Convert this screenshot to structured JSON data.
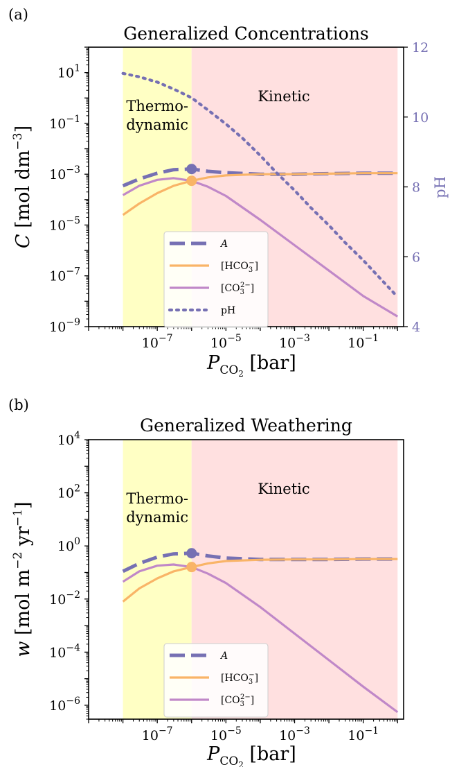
{
  "chart_data": [
    {
      "panel_label": "(a)",
      "type": "line",
      "title": "Generalized Concentrations",
      "xlabel": "P_CO2 [bar]",
      "ylabel": "C [mol dm^-3]",
      "ylabel_right": "pH",
      "x_scale": "log",
      "y_scale": "log",
      "xlim": [
        1e-09,
        1.5
      ],
      "ylim": [
        1e-09,
        100
      ],
      "ylim_right": [
        4,
        12
      ],
      "x_ticks": [
        {
          "value": 1e-07,
          "base": "10",
          "exp": "−7"
        },
        {
          "value": 1e-05,
          "base": "10",
          "exp": "−5"
        },
        {
          "value": 0.001,
          "base": "10",
          "exp": "−3"
        },
        {
          "value": 0.1,
          "base": "10",
          "exp": "−1"
        }
      ],
      "y_ticks": [
        {
          "value": 10,
          "base": "10",
          "exp": "1"
        },
        {
          "value": 0.1,
          "base": "10",
          "exp": "−1"
        },
        {
          "value": 0.001,
          "base": "10",
          "exp": "−3"
        },
        {
          "value": 1e-05,
          "base": "10",
          "exp": "−5"
        },
        {
          "value": 1e-07,
          "base": "10",
          "exp": "−7"
        },
        {
          "value": 1e-09,
          "base": "10",
          "exp": "−9"
        }
      ],
      "y_ticks_right": [
        {
          "value": 12,
          "label": "12"
        },
        {
          "value": 10,
          "label": "10"
        },
        {
          "value": 8,
          "label": "8"
        },
        {
          "value": 6,
          "label": "6"
        },
        {
          "value": 4,
          "label": "4"
        }
      ],
      "regions": [
        {
          "name": "Thermodynamic",
          "label_lines": [
            "Thermo-",
            "dynamic"
          ],
          "x_range": [
            1e-08,
            1e-06
          ],
          "color": "#ffffc4"
        },
        {
          "name": "Kinetic",
          "label_lines": [
            "Kinetic"
          ],
          "x_range": [
            1e-06,
            1.0
          ],
          "color": "#ffe0e0"
        }
      ],
      "legend": {
        "position": "lower-center"
      },
      "series": [
        {
          "name": "A",
          "style": "dashed",
          "color": "#7670b3",
          "axis": "left",
          "x": [
            1e-08,
            3e-08,
            1e-07,
            3e-07,
            1e-06,
            3e-06,
            1e-05,
            0.0001,
            0.001,
            0.01,
            0.1,
            1.0
          ],
          "y": [
            0.00035,
            0.00065,
            0.0011,
            0.0015,
            0.0016,
            0.0013,
            0.00115,
            0.001,
            0.001,
            0.00105,
            0.0011,
            0.0011
          ]
        },
        {
          "name": "[HCO3-]",
          "style": "solid",
          "color": "#f9b467",
          "axis": "left",
          "x": [
            1e-08,
            3e-08,
            1e-07,
            3e-07,
            1e-06,
            3e-06,
            1e-05,
            0.0001,
            0.001,
            0.01,
            0.1,
            1.0
          ],
          "y": [
            2.5e-05,
            7e-05,
            0.00018,
            0.00035,
            0.00055,
            0.00075,
            0.0009,
            0.001,
            0.001,
            0.00105,
            0.0011,
            0.0011
          ]
        },
        {
          "name": "[CO3 2-]",
          "style": "solid",
          "color": "#c088c8",
          "axis": "left",
          "x": [
            1e-08,
            3e-08,
            1e-07,
            3e-07,
            1e-06,
            3e-06,
            1e-05,
            0.0001,
            0.001,
            0.01,
            0.1,
            1.0
          ],
          "y": [
            0.00015,
            0.00035,
            0.0006,
            0.0007,
            0.00055,
            0.00032,
            0.00014,
            1.6e-05,
            1.6e-06,
            1.6e-07,
            1.6e-08,
            2.5e-09
          ]
        },
        {
          "name": "pH",
          "style": "dotted",
          "color": "#7670b3",
          "axis": "right",
          "x": [
            1e-08,
            3e-08,
            1e-07,
            3e-07,
            1e-06,
            3e-06,
            1e-05,
            3e-05,
            0.0001,
            0.0003,
            0.001,
            0.003,
            0.01,
            0.03,
            0.1,
            0.3,
            1.0
          ],
          "y": [
            11.25,
            11.15,
            11.0,
            10.8,
            10.55,
            10.2,
            9.8,
            9.4,
            8.9,
            8.4,
            7.9,
            7.4,
            6.9,
            6.4,
            5.9,
            5.4,
            4.85
          ]
        }
      ],
      "markers": [
        {
          "series": "A",
          "x": 1e-06,
          "y": 0.0016,
          "color": "#7670b3"
        },
        {
          "series": "[HCO3-]",
          "x": 1e-06,
          "y": 0.00055,
          "color": "#f9b467"
        }
      ]
    },
    {
      "panel_label": "(b)",
      "type": "line",
      "title": "Generalized Weathering",
      "xlabel": "P_CO2 [bar]",
      "ylabel": "w [mol m^-2 yr^-1]",
      "x_scale": "log",
      "y_scale": "log",
      "xlim": [
        1e-09,
        1.5
      ],
      "ylim": [
        3e-07,
        10000
      ],
      "x_ticks": [
        {
          "value": 1e-07,
          "base": "10",
          "exp": "−7"
        },
        {
          "value": 1e-05,
          "base": "10",
          "exp": "−5"
        },
        {
          "value": 0.001,
          "base": "10",
          "exp": "−3"
        },
        {
          "value": 0.1,
          "base": "10",
          "exp": "−1"
        }
      ],
      "y_ticks": [
        {
          "value": 10000,
          "base": "10",
          "exp": "4"
        },
        {
          "value": 100,
          "base": "10",
          "exp": "2"
        },
        {
          "value": 1,
          "base": "10",
          "exp": "0"
        },
        {
          "value": 0.01,
          "base": "10",
          "exp": "−2"
        },
        {
          "value": 0.0001,
          "base": "10",
          "exp": "−4"
        },
        {
          "value": 1e-06,
          "base": "10",
          "exp": "−6"
        }
      ],
      "regions": [
        {
          "name": "Thermodynamic",
          "label_lines": [
            "Thermo-",
            "dynamic"
          ],
          "x_range": [
            1e-08,
            1e-06
          ],
          "color": "#ffffc4"
        },
        {
          "name": "Kinetic",
          "label_lines": [
            "Kinetic"
          ],
          "x_range": [
            1e-06,
            1.0
          ],
          "color": "#ffe0e0"
        }
      ],
      "legend": {
        "position": "lower-center"
      },
      "series": [
        {
          "name": "A",
          "style": "dashed",
          "color": "#7670b3",
          "axis": "left",
          "x": [
            1e-08,
            3e-08,
            1e-07,
            3e-07,
            1e-06,
            3e-06,
            1e-05,
            0.0001,
            0.001,
            0.01,
            0.1,
            1.0
          ],
          "y": [
            0.11,
            0.22,
            0.38,
            0.5,
            0.53,
            0.42,
            0.35,
            0.31,
            0.31,
            0.31,
            0.32,
            0.32
          ]
        },
        {
          "name": "[HCO3-]",
          "style": "solid",
          "color": "#f9b467",
          "axis": "left",
          "x": [
            1e-08,
            3e-08,
            1e-07,
            3e-07,
            1e-06,
            3e-06,
            1e-05,
            0.0001,
            0.001,
            0.01,
            0.1,
            1.0
          ],
          "y": [
            0.008,
            0.025,
            0.06,
            0.11,
            0.16,
            0.22,
            0.27,
            0.3,
            0.31,
            0.31,
            0.32,
            0.32
          ]
        },
        {
          "name": "[CO3 2-]",
          "style": "solid",
          "color": "#c088c8",
          "axis": "left",
          "x": [
            1e-08,
            3e-08,
            1e-07,
            3e-07,
            1e-06,
            3e-06,
            1e-05,
            0.0001,
            0.001,
            0.01,
            0.1,
            1.0
          ],
          "y": [
            0.045,
            0.11,
            0.18,
            0.2,
            0.16,
            0.09,
            0.04,
            0.005,
            0.0005,
            5e-05,
            5e-06,
            5.5e-07
          ]
        }
      ],
      "markers": [
        {
          "series": "A",
          "x": 1e-06,
          "y": 0.53,
          "color": "#7670b3"
        },
        {
          "series": "[HCO3-]",
          "x": 1e-06,
          "y": 0.16,
          "color": "#f9b467"
        }
      ]
    }
  ]
}
